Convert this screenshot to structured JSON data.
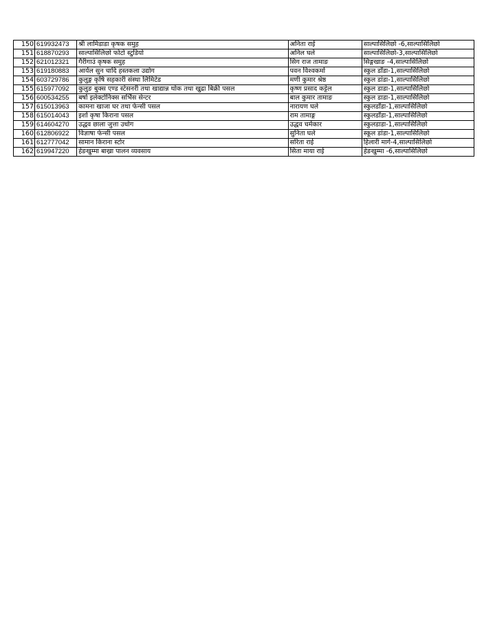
{
  "table": {
    "rows": [
      {
        "sn": "150",
        "reg": "619932473",
        "name": "श्री लामिडाडा कृषक समुह",
        "owner": "अनिता  राई",
        "address": "साल्पासिलिछो -6,साल्पासिलिछो"
      },
      {
        "sn": "151",
        "reg": "618870293",
        "name": "साल्पासिलिछो फोटो स्टुडियो",
        "owner": "अनिल  घले",
        "address": "साल्पासिलिछो-3,साल्पासिलिछो"
      },
      {
        "sn": "152",
        "reg": "621012321",
        "name": "गैरीगाउं कृषक समुह",
        "owner": "सिग राज तामाङ",
        "address": "सिङ्गखाङ -4,साल्पासिलिछो"
      },
      {
        "sn": "153",
        "reg": "619180883",
        "name": "आर्यल  सुन चादि हस्तकला उद्योग",
        "owner": "पवन  विश्वकर्मा",
        "address": "स्कुल डाँडा-1,साल्पासिलिछो"
      },
      {
        "sn": "154",
        "reg": "603729786",
        "name": "कुलुङ्ग कृषि सहकारी संस्था लिमिटेड",
        "owner": "मणी कुमार श्रेष्ठ",
        "address": "स्कुल डांडा-1,साल्पासिलिछो"
      },
      {
        "sn": "155",
        "reg": "615977092",
        "name": "कुलुङ बुक्स एण्ड स्टेसनरी तथा खाद्यान्न थोक तथा खुद्रा बिक्री पसल",
        "owner": "कृष्ण प्रसाद कट्टेल",
        "address": "स्कुल डाडा-1,साल्पासिलिछो"
      },
      {
        "sn": "156",
        "reg": "600534255",
        "name": "बर्षा इलेक्टोनिक्स सर्भिस सेन्टर",
        "owner": "बाल कुमार तामाङ",
        "address": "स्कुल डाडा-1,साल्पासिलिछो"
      },
      {
        "sn": "157",
        "reg": "615013963",
        "name": "कामना खाजा घर तथा फेन्सी पसल",
        "owner": "नारायण  घले",
        "address": "स्कुलडाँडा-1,साल्पासिलिछो"
      },
      {
        "sn": "158",
        "reg": "615014043",
        "name": "इर्शा कृषा किराना पसल",
        "owner": "राम  तामाङ्ग",
        "address": "स्कुलडाँडा-1,साल्पासिलिछो"
      },
      {
        "sn": "159",
        "reg": "614604270",
        "name": "उद्धव छाला जुत्ता उधोग",
        "owner": "उद्धव  चर्मकार",
        "address": "स्कुलडाडा-1,साल्पासिलिछो"
      },
      {
        "sn": "160",
        "reg": "612806922",
        "name": "विज्ञाषा फेन्सी पसल",
        "owner": "सुनिता  घले",
        "address": "स्कूल डांडा-1,साल्पासिलिछो"
      },
      {
        "sn": "161",
        "reg": "612777042",
        "name": "सामान किराना स्टोर",
        "owner": "सरिता  राई",
        "address": "हिलारी मार्ग-4,साल्पासिलिछो"
      },
      {
        "sn": "162",
        "reg": "619947220",
        "name": "हेङखुम्मा बाख्रा पालन व्यवसाय",
        "owner": "सिता माया  राई",
        "address": "हेङखुम्मा -6,साल्पासिलिछो"
      }
    ]
  }
}
